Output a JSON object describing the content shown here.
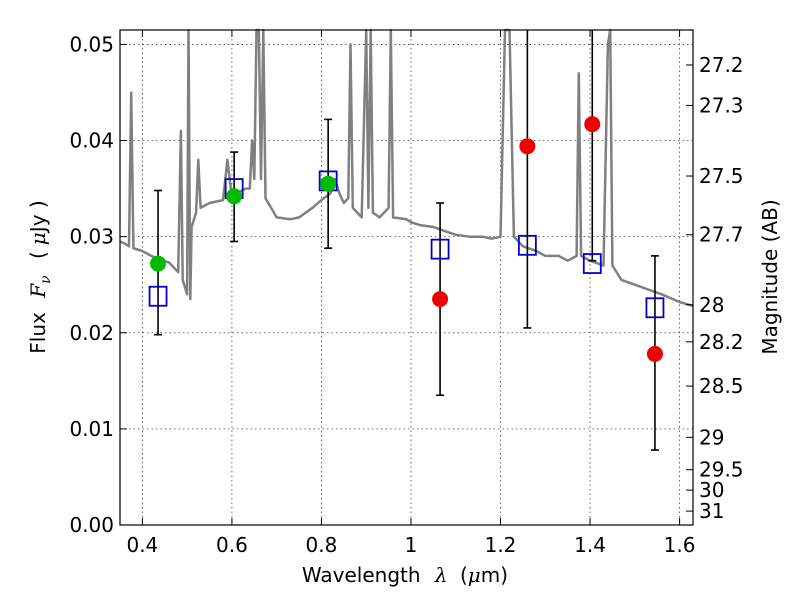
{
  "chart_data": {
    "type": "scatter",
    "title": "",
    "xlabel_text": "Wavelength",
    "xlabel_symbol": "λ",
    "xlabel_unit_open": "(",
    "xlabel_unit_symbol": "μ",
    "xlabel_unit_close": "m)",
    "ylabel_text": "Flux",
    "ylabel_symbol": "F",
    "ylabel_subscript": "ν",
    "ylabel_unit_open": "(",
    "ylabel_unit_symbol": "μ",
    "ylabel_unit_close": "Jy )",
    "y2label": "Magnitude (AB)",
    "xlim": [
      0.35,
      1.63
    ],
    "ylim": [
      0.0,
      0.0515
    ],
    "grid": true,
    "x_ticks": [
      {
        "value": 0.4,
        "label": "0.4"
      },
      {
        "value": 0.6,
        "label": "0.6"
      },
      {
        "value": 0.8,
        "label": "0.8"
      },
      {
        "value": 1.0,
        "label": "1"
      },
      {
        "value": 1.2,
        "label": "1.2"
      },
      {
        "value": 1.4,
        "label": "1.4"
      },
      {
        "value": 1.6,
        "label": "1.6"
      }
    ],
    "y_ticks": [
      {
        "value": 0.0,
        "label": "0.00"
      },
      {
        "value": 0.01,
        "label": "0.01"
      },
      {
        "value": 0.02,
        "label": "0.02"
      },
      {
        "value": 0.03,
        "label": "0.03"
      },
      {
        "value": 0.04,
        "label": "0.04"
      },
      {
        "value": 0.05,
        "label": "0.05"
      }
    ],
    "mag_ticks": [
      {
        "value": 27.2,
        "label": "27.2"
      },
      {
        "value": 27.3,
        "label": "27.3"
      },
      {
        "value": 27.5,
        "label": "27.5"
      },
      {
        "value": 27.7,
        "label": "27.7"
      },
      {
        "value": 28.0,
        "label": "28"
      },
      {
        "value": 28.2,
        "label": "28.2"
      },
      {
        "value": 28.5,
        "label": "28.5"
      },
      {
        "value": 29.0,
        "label": "29"
      },
      {
        "value": 29.5,
        "label": "29.5"
      },
      {
        "value": 30.0,
        "label": "30"
      },
      {
        "value": 31.0,
        "label": "31"
      }
    ],
    "spectrum": {
      "color": "#808080",
      "points": [
        [
          0.35,
          0.0295
        ],
        [
          0.36,
          0.0293
        ],
        [
          0.37,
          0.029
        ],
        [
          0.375,
          0.045
        ],
        [
          0.38,
          0.0288
        ],
        [
          0.4,
          0.0285
        ],
        [
          0.42,
          0.028
        ],
        [
          0.44,
          0.0276
        ],
        [
          0.46,
          0.0273
        ],
        [
          0.48,
          0.0263
        ],
        [
          0.486,
          0.041
        ],
        [
          0.49,
          0.0255
        ],
        [
          0.5,
          0.024
        ],
        [
          0.503,
          0.0515
        ],
        [
          0.507,
          0.0235
        ],
        [
          0.51,
          0.031
        ],
        [
          0.52,
          0.0325
        ],
        [
          0.525,
          0.038
        ],
        [
          0.53,
          0.033
        ],
        [
          0.55,
          0.0335
        ],
        [
          0.58,
          0.0338
        ],
        [
          0.59,
          0.038
        ],
        [
          0.6,
          0.034
        ],
        [
          0.61,
          0.0345
        ],
        [
          0.63,
          0.035
        ],
        [
          0.64,
          0.035
        ],
        [
          0.645,
          0.04
        ],
        [
          0.65,
          0.036
        ],
        [
          0.655,
          0.0515
        ],
        [
          0.66,
          0.0515
        ],
        [
          0.665,
          0.036
        ],
        [
          0.67,
          0.0515
        ],
        [
          0.675,
          0.034
        ],
        [
          0.7,
          0.032
        ],
        [
          0.73,
          0.0318
        ],
        [
          0.75,
          0.032
        ],
        [
          0.78,
          0.033
        ],
        [
          0.8,
          0.0338
        ],
        [
          0.82,
          0.0345
        ],
        [
          0.83,
          0.036
        ],
        [
          0.84,
          0.0345
        ],
        [
          0.85,
          0.0335
        ],
        [
          0.86,
          0.034
        ],
        [
          0.865,
          0.05
        ],
        [
          0.87,
          0.033
        ],
        [
          0.89,
          0.032
        ],
        [
          0.9,
          0.0515
        ],
        [
          0.905,
          0.033
        ],
        [
          0.91,
          0.0515
        ],
        [
          0.915,
          0.0325
        ],
        [
          0.93,
          0.032
        ],
        [
          0.95,
          0.033
        ],
        [
          0.955,
          0.0515
        ],
        [
          0.96,
          0.032
        ],
        [
          0.99,
          0.0318
        ],
        [
          1.0,
          0.0315
        ],
        [
          1.02,
          0.0312
        ],
        [
          1.05,
          0.031
        ],
        [
          1.08,
          0.0305
        ],
        [
          1.1,
          0.0302
        ],
        [
          1.13,
          0.03
        ],
        [
          1.16,
          0.03
        ],
        [
          1.18,
          0.0298
        ],
        [
          1.2,
          0.03
        ],
        [
          1.21,
          0.0515
        ],
        [
          1.22,
          0.0515
        ],
        [
          1.23,
          0.03
        ],
        [
          1.25,
          0.029
        ],
        [
          1.28,
          0.0285
        ],
        [
          1.3,
          0.028
        ],
        [
          1.33,
          0.028
        ],
        [
          1.35,
          0.0275
        ],
        [
          1.37,
          0.028
        ],
        [
          1.375,
          0.047
        ],
        [
          1.38,
          0.028
        ],
        [
          1.4,
          0.0275
        ],
        [
          1.43,
          0.027
        ],
        [
          1.44,
          0.05
        ],
        [
          1.445,
          0.0515
        ],
        [
          1.45,
          0.027
        ],
        [
          1.47,
          0.0255
        ],
        [
          1.5,
          0.025
        ],
        [
          1.53,
          0.0245
        ],
        [
          1.56,
          0.024
        ],
        [
          1.6,
          0.0232
        ],
        [
          1.63,
          0.0228
        ]
      ]
    },
    "model_points": {
      "color": "#0000cc",
      "points": [
        [
          0.435,
          0.0238
        ],
        [
          0.605,
          0.035
        ],
        [
          0.815,
          0.0358
        ],
        [
          1.065,
          0.0287
        ],
        [
          1.26,
          0.0291
        ],
        [
          1.405,
          0.0272
        ],
        [
          1.545,
          0.0226
        ]
      ]
    },
    "green_points": {
      "color": "#00bb00",
      "points": [
        [
          0.435,
          0.0272
        ],
        [
          0.605,
          0.0342
        ],
        [
          0.815,
          0.0355
        ]
      ]
    },
    "red_points": {
      "color": "#ee0000",
      "points": [
        [
          1.065,
          0.0235
        ],
        [
          1.26,
          0.0394
        ],
        [
          1.405,
          0.0417
        ],
        [
          1.545,
          0.0178
        ]
      ]
    },
    "error_bars": [
      {
        "x": 0.435,
        "low": 0.0198,
        "high": 0.0348
      },
      {
        "x": 0.605,
        "low": 0.0295,
        "high": 0.0388
      },
      {
        "x": 0.815,
        "low": 0.0288,
        "high": 0.0422
      },
      {
        "x": 1.065,
        "low": 0.0135,
        "high": 0.0335
      },
      {
        "x": 1.26,
        "low": 0.0205,
        "high": 0.0515
      },
      {
        "x": 1.405,
        "low": 0.0275,
        "high": 0.0515
      },
      {
        "x": 1.545,
        "low": 0.0078,
        "high": 0.028
      }
    ]
  }
}
